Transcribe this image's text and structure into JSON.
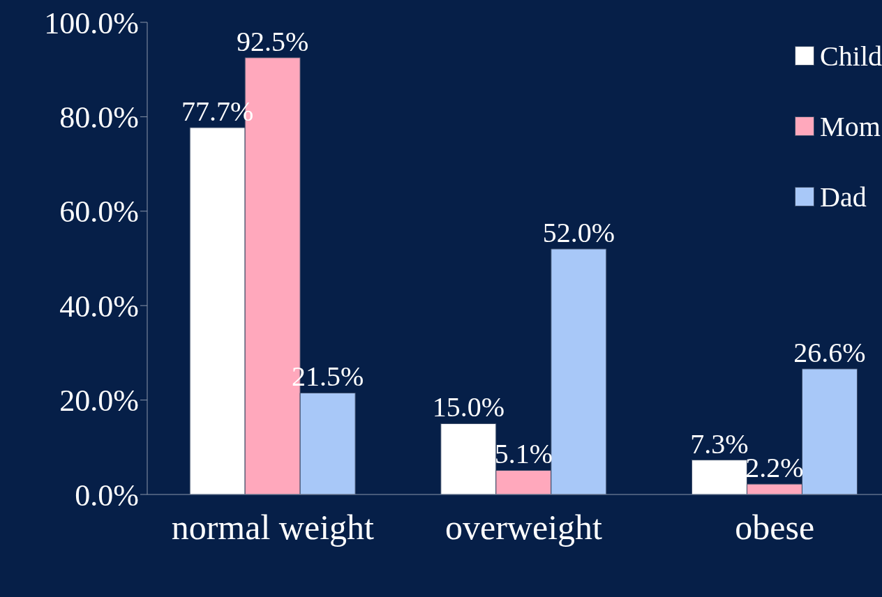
{
  "chart_data": {
    "type": "bar",
    "categories": [
      "normal weight",
      "overweight",
      "obese"
    ],
    "series": [
      {
        "name": "Child",
        "color": "#ffffff",
        "values": [
          77.7,
          15.0,
          7.3
        ],
        "value_labels": [
          "77.7%",
          "15.0%",
          "7.3%"
        ]
      },
      {
        "name": "Mom",
        "color": "#ffa8bc",
        "values": [
          92.5,
          5.1,
          2.2
        ],
        "value_labels": [
          "92.5%",
          "5.1%",
          "2.2%"
        ]
      },
      {
        "name": "Dad",
        "color": "#a8c8f8",
        "values": [
          21.5,
          52.0,
          26.6
        ],
        "value_labels": [
          "21.5%",
          "52.0%",
          "26.6%"
        ]
      }
    ],
    "ylim": [
      0,
      100
    ],
    "yticks": [
      {
        "value": 0,
        "label": "0.0%"
      },
      {
        "value": 20,
        "label": "20.0%"
      },
      {
        "value": 40,
        "label": "40.0%"
      },
      {
        "value": 60,
        "label": "60.0%"
      },
      {
        "value": 80,
        "label": "80.0%"
      },
      {
        "value": 100,
        "label": "100.0%"
      }
    ],
    "grid": false,
    "legend": "top right"
  }
}
